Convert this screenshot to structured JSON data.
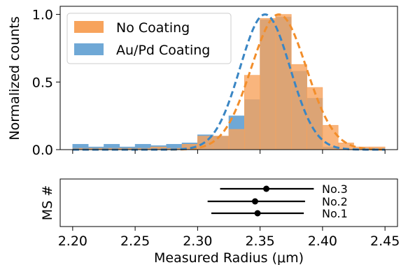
{
  "colors": {
    "no_coating": "#f28e2b",
    "au_pd_coating": "#1f77b4",
    "no_coating_fill": "#f7a35c",
    "au_pd_fill": "#6fa8d6"
  },
  "chart_data": [
    {
      "type": "bar",
      "subtype": "histogram",
      "title": "",
      "xlabel": "",
      "ylabel": "Normalized counts",
      "xlim": [
        2.19,
        2.46
      ],
      "ylim": [
        0,
        1.06
      ],
      "yticks": [
        0.0,
        0.5,
        1.0
      ],
      "ytick_labels": [
        "0.0",
        "0.5",
        "1.0"
      ],
      "bin_width": 0.0125,
      "grid": false,
      "legend_position": "top-left",
      "series": [
        {
          "name": "No Coating",
          "color": "#f7a35c",
          "bin_starts": [
            2.2,
            2.2125,
            2.225,
            2.2375,
            2.25,
            2.2625,
            2.275,
            2.2875,
            2.3,
            2.3125,
            2.325,
            2.3375,
            2.35,
            2.3625,
            2.375,
            2.3875,
            2.4,
            2.4125,
            2.425,
            2.4375
          ],
          "values": [
            0.01,
            0.01,
            0.01,
            0.01,
            0.01,
            0.02,
            0.01,
            0.04,
            0.1,
            0.1,
            0.15,
            0.55,
            0.97,
            1.0,
            0.63,
            0.46,
            0.18,
            0.05,
            0.02,
            0.02
          ]
        },
        {
          "name": "Au/Pd Coating",
          "color": "#6fa8d6",
          "bin_starts": [
            2.2,
            2.2125,
            2.225,
            2.2375,
            2.25,
            2.2625,
            2.275,
            2.2875,
            2.3,
            2.3125,
            2.325,
            2.3375,
            2.35,
            2.3625,
            2.375,
            2.3875,
            2.4
          ],
          "values": [
            0.04,
            0.02,
            0.04,
            0.02,
            0.04,
            0.03,
            0.04,
            0.05,
            0.11,
            0.1,
            0.25,
            0.37,
            0.96,
            0.98,
            0.58,
            0.38,
            0.02
          ]
        }
      ],
      "fits": [
        {
          "series": "No Coating",
          "style": "dashed",
          "color": "#f28e2b",
          "mean": 2.365,
          "sigma": 0.022,
          "peak": 1.0
        },
        {
          "series": "Au/Pd Coating",
          "style": "dashed",
          "color": "#3a86c4",
          "mean": 2.354,
          "sigma": 0.02,
          "peak": 1.0
        }
      ]
    },
    {
      "type": "scatter",
      "subtype": "errorbar",
      "title": "",
      "xlabel": "Measured Radius (μm)",
      "ylabel": "MS #",
      "xlim": [
        2.19,
        2.46
      ],
      "xticks": [
        2.2,
        2.25,
        2.3,
        2.35,
        2.4,
        2.45
      ],
      "xtick_labels": [
        "2.20",
        "2.25",
        "2.30",
        "2.35",
        "2.40",
        "2.45"
      ],
      "grid": false,
      "points": [
        {
          "label": "No.3",
          "x": 2.355,
          "xerr_low": 2.318,
          "xerr_high": 2.393
        },
        {
          "label": "No.2",
          "x": 2.346,
          "xerr_low": 2.308,
          "xerr_high": 2.386
        },
        {
          "label": "No.1",
          "x": 2.348,
          "xerr_low": 2.311,
          "xerr_high": 2.385
        }
      ]
    }
  ]
}
